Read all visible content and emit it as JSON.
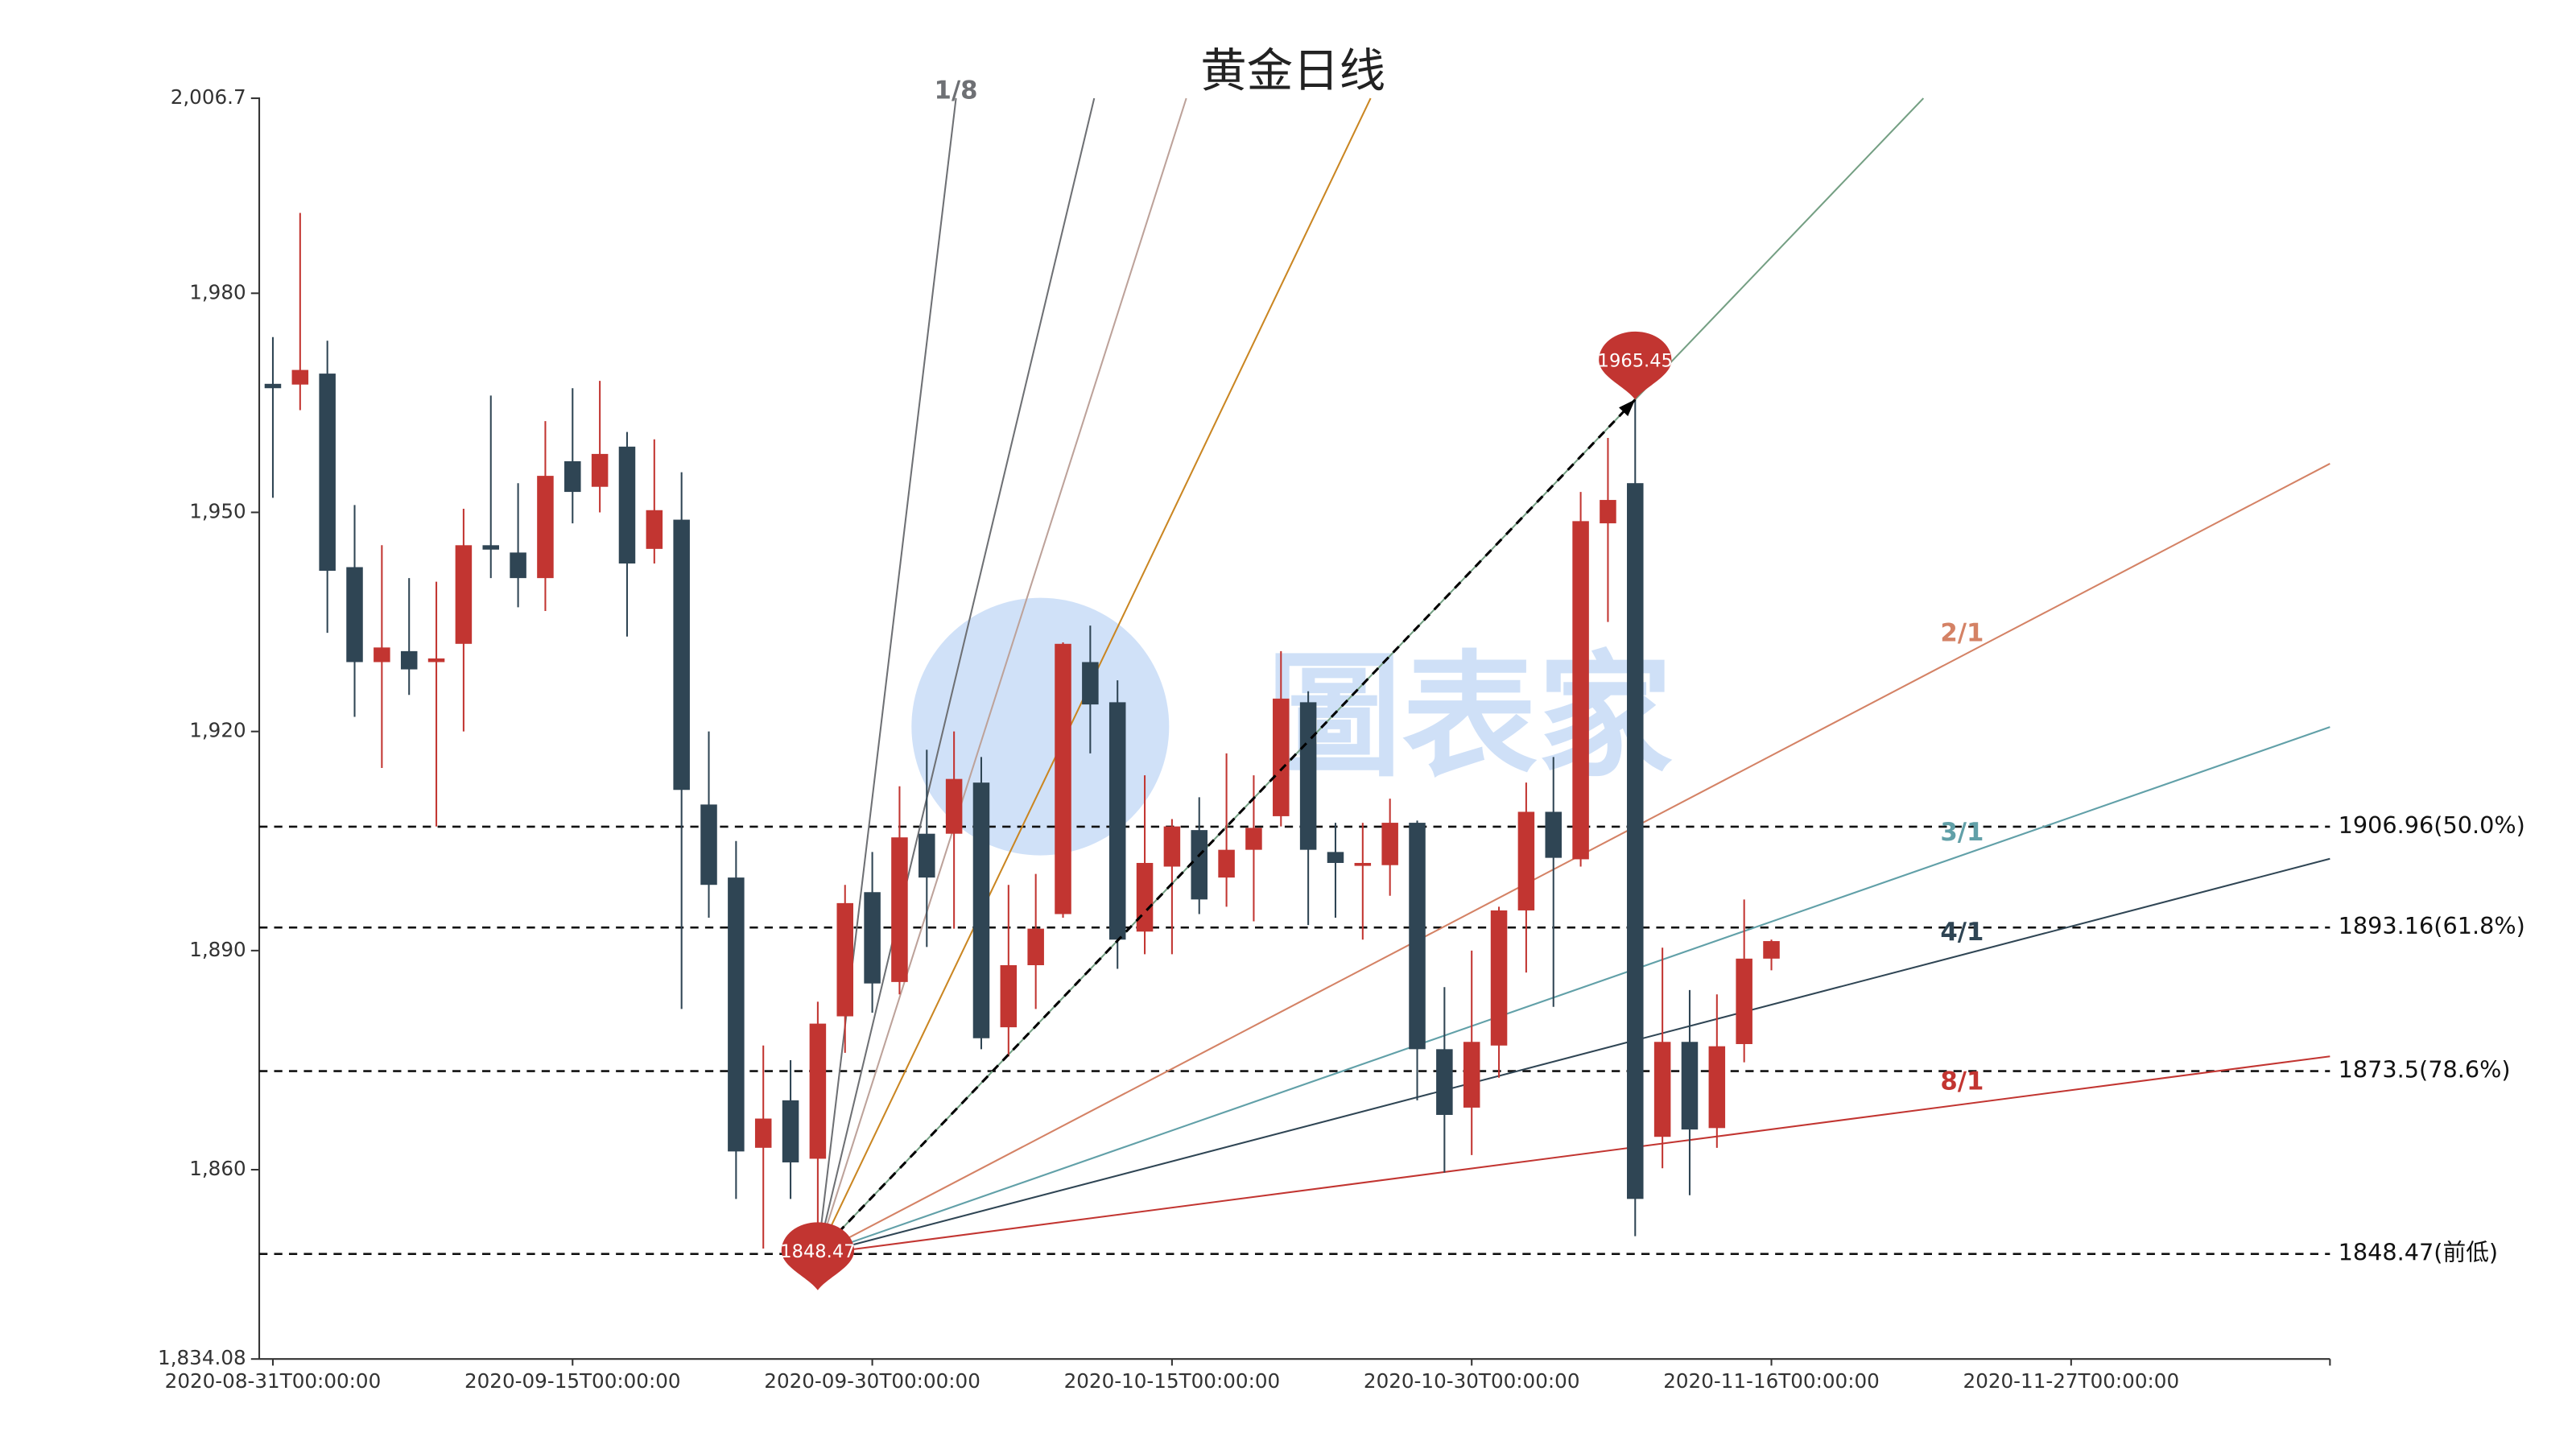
{
  "chart_data": {
    "type": "candlestick",
    "title": "黄金日线",
    "watermark": "圖表家",
    "xlim": [
      -0.5,
      75.5
    ],
    "xticks": [
      {
        "value": 0,
        "label": "2020-08-31T00:00:00"
      },
      {
        "value": 11,
        "label": "2020-09-15T00:00:00"
      },
      {
        "value": 22,
        "label": "2020-09-30T00:00:00"
      },
      {
        "value": 33,
        "label": "2020-10-15T00:00:00"
      },
      {
        "value": 44,
        "label": "2020-10-30T00:00:00"
      },
      {
        "value": 55,
        "label": "2020-11-16T00:00:00"
      },
      {
        "value": 66,
        "label": "2020-11-27T00:00:00"
      }
    ],
    "ylim": [
      1834.08,
      2006.7
    ],
    "yticks": [
      {
        "value": 1834.08,
        "label": "1,834.08"
      },
      {
        "value": 1860,
        "label": "1,860"
      },
      {
        "value": 1890,
        "label": "1,890"
      },
      {
        "value": 1920,
        "label": "1,920"
      },
      {
        "value": 1950,
        "label": "1,950"
      },
      {
        "value": 1980,
        "label": "1,980"
      },
      {
        "value": 2006.7,
        "label": "2,006.7"
      }
    ],
    "up_color": "#c23531",
    "down_color": "#2f4554",
    "candles": {
      "open": [
        1967.6,
        1967.5,
        1969,
        1942.5,
        1929.5,
        1931,
        1929.5,
        1932,
        1945.5,
        1944.5,
        1941,
        1957,
        1953.5,
        1959,
        1945,
        1949,
        1910,
        1900,
        1863,
        1869.5,
        1861.5,
        1881,
        1898,
        1885.7,
        1906,
        1906,
        1913,
        1879.5,
        1888,
        1895,
        1929.5,
        1924,
        1892.6,
        1901.5,
        1906.5,
        1900,
        1903.8,
        1908.4,
        1924,
        1903.5,
        1901.6,
        1901.7,
        1907.5,
        1876.5,
        1868.5,
        1877,
        1895.5,
        1909,
        1902.5,
        1948.5,
        1954,
        1864.5,
        1877.5,
        1865.7,
        1877.2,
        1888.9
      ],
      "close": [
        1967.0,
        1969.5,
        1942,
        1929.5,
        1931.5,
        1928.5,
        1930,
        1945.5,
        1944.9,
        1941,
        1955,
        1952.8,
        1958,
        1943,
        1950.3,
        1912,
        1899,
        1862.5,
        1867,
        1861,
        1880,
        1896.5,
        1885.5,
        1905.5,
        1900,
        1913.5,
        1878,
        1888,
        1893,
        1932,
        1923.7,
        1891.5,
        1902,
        1907,
        1897,
        1903.8,
        1906.8,
        1924.5,
        1903.8,
        1902,
        1902,
        1907.5,
        1876.5,
        1867.5,
        1877.5,
        1895.5,
        1909,
        1902.7,
        1948.8,
        1951.7,
        1856,
        1877.5,
        1865.5,
        1876.9,
        1888.9,
        1891.3
      ],
      "high": [
        1974,
        1991,
        1973.5,
        1951,
        1945.5,
        1941,
        1940.5,
        1950.5,
        1966,
        1954,
        1962.5,
        1967,
        1968,
        1961,
        1960,
        1955.5,
        1920,
        1905,
        1877,
        1875,
        1883,
        1899,
        1903.5,
        1912.5,
        1917.5,
        1920,
        1916.5,
        1899,
        1900.5,
        1932.2,
        1934.5,
        1927,
        1914,
        1908,
        1911,
        1917,
        1914,
        1931,
        1925.5,
        1907.5,
        1907.5,
        1910.8,
        1907.8,
        1885,
        1890,
        1896,
        1913,
        1916.5,
        1952.8,
        1960.2,
        1965.45,
        1890.4,
        1884.6,
        1884,
        1897,
        1891.5
      ],
      "low": [
        1952,
        1964,
        1933.5,
        1922,
        1915,
        1925,
        1907,
        1920,
        1941,
        1937,
        1936.5,
        1948.5,
        1950,
        1933,
        1943,
        1882,
        1894.5,
        1856,
        1849.2,
        1856,
        1848.47,
        1876,
        1881.5,
        1884,
        1890.5,
        1893,
        1876.5,
        1875.5,
        1882,
        1894.5,
        1917,
        1887.5,
        1889.5,
        1889.5,
        1895,
        1896,
        1894,
        1907,
        1893.5,
        1894.5,
        1891.5,
        1897.5,
        1869.5,
        1859.6,
        1862,
        1872.6,
        1887,
        1882.3,
        1901.5,
        1935,
        1850.9,
        1860.2,
        1856.5,
        1863,
        1874.7,
        1887.3
      ]
    },
    "markers": [
      {
        "index": 50,
        "value": 1965.45,
        "color": "#c23531"
      },
      {
        "index": 20,
        "value": 1848.47,
        "color": "#c23531"
      }
    ],
    "levels": [
      {
        "value": 1906.96,
        "label": "1906.96(50.0%)"
      },
      {
        "value": 1893.16,
        "label": "1893.16(61.8%)"
      },
      {
        "value": 1873.5,
        "label": "1873.5(78.6%)"
      },
      {
        "value": 1848.47,
        "label": "1848.47(前低)"
      }
    ],
    "fan": [
      {
        "ratio": 0.125,
        "label": "1/8",
        "color": "#6e7074"
      },
      {
        "ratio": 0.25,
        "label": null,
        "color": "#6e7074"
      },
      {
        "ratio": 0.3333,
        "label": null,
        "color": "#bda29a"
      },
      {
        "ratio": 0.5,
        "label": null,
        "color": "#ca8622"
      },
      {
        "ratio": 1,
        "label": null,
        "color": "#749f83"
      },
      {
        "ratio": 2,
        "label": "2/1",
        "color": "#d48265"
      },
      {
        "ratio": 3,
        "label": "3/1",
        "color": "#61a0a8"
      },
      {
        "ratio": 4,
        "label": "4/1",
        "color": "#2f4554"
      },
      {
        "ratio": 8,
        "label": "8/1",
        "color": "#c23531"
      }
    ]
  }
}
